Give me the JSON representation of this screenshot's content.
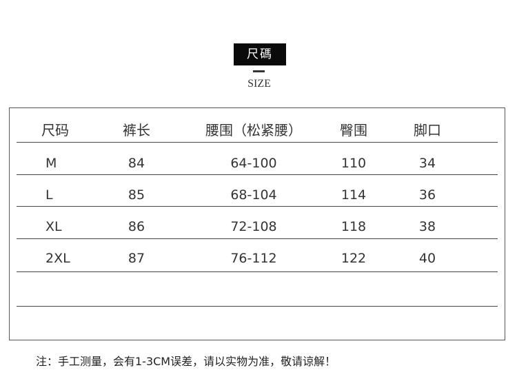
{
  "title_badge": "尺碼",
  "subtitle": "SIZE",
  "table": {
    "headers": [
      "尺码",
      "裤长",
      "腰围（松紧腰）",
      "臀围",
      "脚口"
    ],
    "rows": [
      [
        "M",
        "84",
        "64-100",
        "110",
        "34"
      ],
      [
        "L",
        "85",
        "68-104",
        "114",
        "36"
      ],
      [
        "XL",
        "86",
        "72-108",
        "118",
        "38"
      ],
      [
        "2XL",
        "87",
        "76-112",
        "122",
        "40"
      ]
    ]
  },
  "note": "注：手工测量，会有1-3CM误差，请以实物为准，敬请谅解！"
}
